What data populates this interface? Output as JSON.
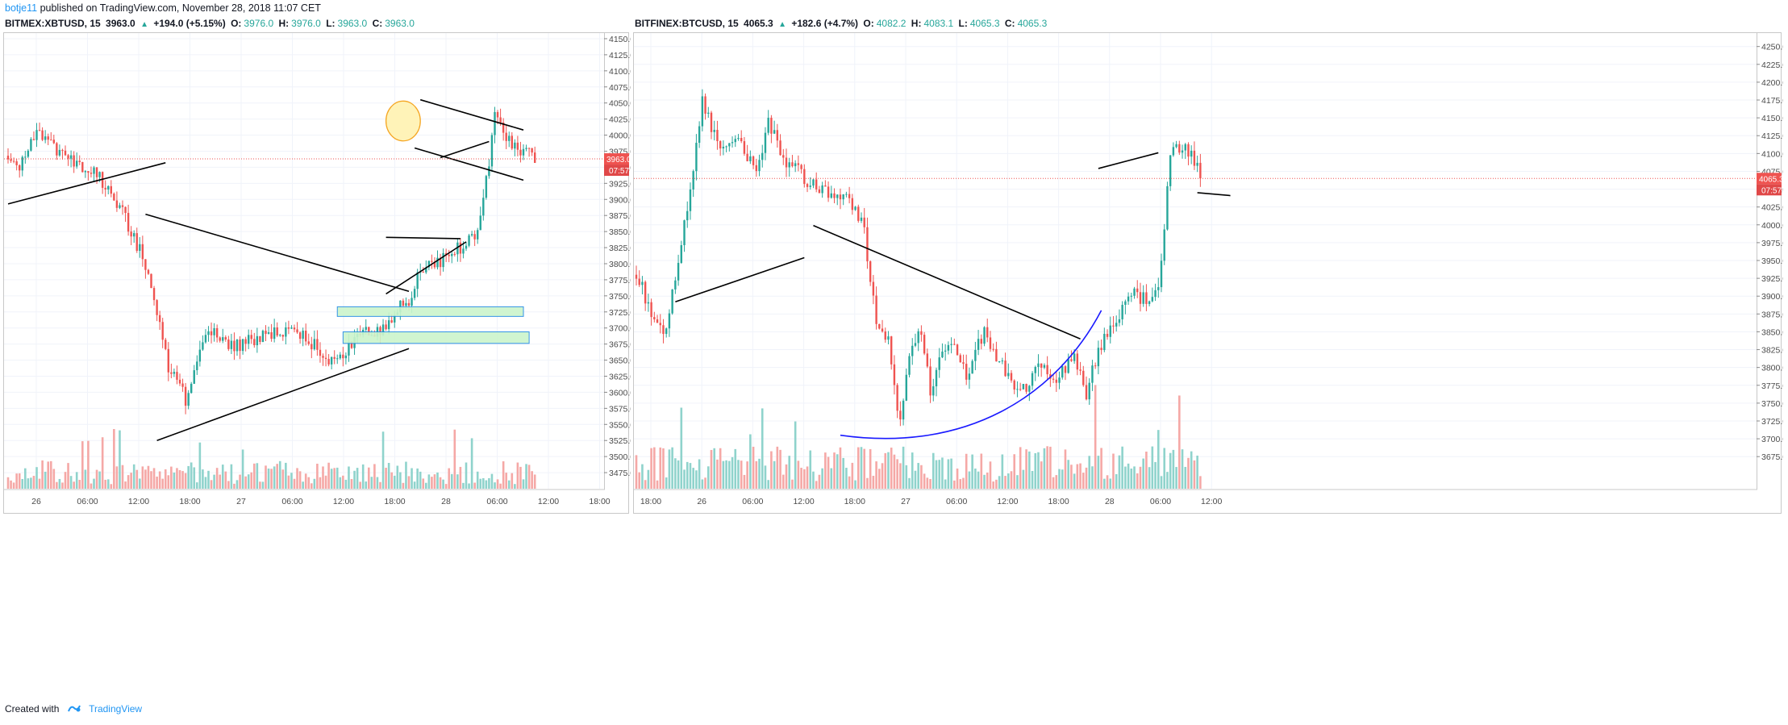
{
  "publication": {
    "author": "botje11",
    "text": "published on TradingView.com, November 28, 2018 11:07 CET"
  },
  "footer": {
    "created_with": "Created with",
    "brand": "TradingView"
  },
  "colors": {
    "up": "#26a69a",
    "down": "#ef5350",
    "up_volume": "#8fd3cc",
    "down_volume": "#f5a8a6",
    "price_line": "#ef5350",
    "zone_fill": "#ccf5cc",
    "zone_border": "#1e88e5",
    "circle_fill": "#fff3b8",
    "circle_border": "#f5a623",
    "curve": "#1a1aff",
    "trendline": "#000000"
  },
  "chart_data": [
    {
      "type": "candlestick",
      "symbol": "BITMEX:XBTUSD, 15",
      "header": {
        "last": "3963.0",
        "change": "+194.0 (+5.15%)",
        "O": "3976.0",
        "H": "3976.0",
        "L": "3963.0",
        "C": "3963.0"
      },
      "ylim": [
        3450,
        4160
      ],
      "y_ticks": [
        3475,
        3500,
        3525,
        3550,
        3575,
        3600,
        3625,
        3650,
        3675,
        3700,
        3725,
        3750,
        3775,
        3800,
        3825,
        3850,
        3875,
        3900,
        3925,
        3950,
        3975,
        4000,
        4025,
        4050,
        4075,
        4100,
        4125,
        4150
      ],
      "y_tick_labels": [
        "3475.0",
        "3500.0",
        "3525.0",
        "3550.0",
        "3575.0",
        "3600.0",
        "3625.0",
        "3650.0",
        "3675.0",
        "3700.0",
        "3725.0",
        "3750.0",
        "3775.0",
        "3800.0",
        "3825.0",
        "3850.0",
        "3875.0",
        "3900.0",
        "3925.0",
        "3950.0",
        "3975.0",
        "4000.0",
        "4025.0",
        "4050.0",
        "4075.0",
        "4100.0",
        "4125.0",
        "4150.0"
      ],
      "x_ticks": [
        "26",
        "06:00",
        "12:00",
        "18:00",
        "27",
        "06:00",
        "12:00",
        "18:00",
        "28",
        "06:00",
        "12:00",
        "18:00"
      ],
      "price_label": "3963.0",
      "countdown": "07:57",
      "last_price": 3963,
      "trend_path": [
        [
          3968,
          0
        ],
        [
          3950,
          4
        ],
        [
          4010,
          10
        ],
        [
          3980,
          16
        ],
        [
          3955,
          24
        ],
        [
          3935,
          32
        ],
        [
          3880,
          40
        ],
        [
          3800,
          48
        ],
        [
          3640,
          56
        ],
        [
          3590,
          62
        ],
        [
          3700,
          70
        ],
        [
          3670,
          78
        ],
        [
          3690,
          90
        ],
        [
          3700,
          100
        ],
        [
          3670,
          108
        ],
        [
          3640,
          112
        ],
        [
          3665,
          118
        ],
        [
          3690,
          124
        ],
        [
          3700,
          132
        ],
        [
          3730,
          136
        ],
        [
          3740,
          140
        ],
        [
          3790,
          144
        ],
        [
          3800,
          150
        ],
        [
          3820,
          156
        ],
        [
          3830,
          160
        ],
        [
          3850,
          164
        ],
        [
          3960,
          168
        ],
        [
          4030,
          170
        ],
        [
          3995,
          174
        ],
        [
          3980,
          178
        ],
        [
          3975,
          182
        ],
        [
          3963,
          185
        ]
      ],
      "n_candles": 185,
      "seed": 17,
      "vol_scale": 0.55,
      "drawings": {
        "lines": [
          [
            0,
            3893,
            55,
            3957
          ],
          [
            48,
            3877,
            140,
            3757
          ],
          [
            52,
            3525,
            140,
            3668
          ],
          [
            132,
            3753,
            160,
            3834
          ],
          [
            132,
            3841,
            158,
            3839
          ],
          [
            144,
            4055,
            180,
            4008
          ],
          [
            142,
            3980,
            180,
            3930
          ],
          [
            151,
            3965,
            168,
            3990
          ]
        ],
        "zones": [
          [
            115,
            3733,
            180,
            3718
          ],
          [
            117,
            3694,
            182,
            3676
          ]
        ],
        "circle": [
          138,
          4022,
          6,
          31
        ]
      }
    },
    {
      "type": "candlestick",
      "symbol": "BITFINEX:BTCUSD, 15",
      "header": {
        "last": "4065.3",
        "change": "+182.6 (+4.7%)",
        "O": "4082.2",
        "H": "4083.1",
        "L": "4065.3",
        "C": "4065.3"
      },
      "ylim": [
        3630,
        4270
      ],
      "y_ticks": [
        3675,
        3700,
        3725,
        3750,
        3775,
        3800,
        3825,
        3850,
        3875,
        3900,
        3925,
        3950,
        3975,
        4000,
        4025,
        4050,
        4075,
        4100,
        4125,
        4150,
        4175,
        4200,
        4225,
        4250
      ],
      "y_tick_labels": [
        "3675.0",
        "3700.0",
        "3725.0",
        "3750.0",
        "3775.0",
        "3800.0",
        "3825.0",
        "3850.0",
        "3875.0",
        "3900.0",
        "3925.0",
        "3950.0",
        "3975.0",
        "4000.0",
        "4025.0",
        "4050.0",
        "4075.0",
        "4100.0",
        "4125.0",
        "4150.0",
        "4175.0",
        "4200.0",
        "4225.0",
        "4250.0"
      ],
      "x_ticks": [
        "18:00",
        "26",
        "06:00",
        "12:00",
        "18:00",
        "27",
        "06:00",
        "12:00",
        "18:00",
        "28",
        "06:00",
        "12:00"
      ],
      "price_label": "4065.3",
      "countdown": "07:57",
      "last_price": 4065,
      "trend_path": [
        [
          3930,
          0
        ],
        [
          3870,
          6
        ],
        [
          3850,
          10
        ],
        [
          3950,
          14
        ],
        [
          4050,
          18
        ],
        [
          4180,
          22
        ],
        [
          4100,
          28
        ],
        [
          4120,
          34
        ],
        [
          4080,
          40
        ],
        [
          4140,
          44
        ],
        [
          4090,
          50
        ],
        [
          4060,
          58
        ],
        [
          4040,
          64
        ],
        [
          4030,
          72
        ],
        [
          3990,
          76
        ],
        [
          3860,
          80
        ],
        [
          3840,
          84
        ],
        [
          3720,
          88
        ],
        [
          3790,
          90
        ],
        [
          3860,
          94
        ],
        [
          3770,
          98
        ],
        [
          3840,
          104
        ],
        [
          3790,
          110
        ],
        [
          3850,
          116
        ],
        [
          3800,
          122
        ],
        [
          3760,
          128
        ],
        [
          3810,
          134
        ],
        [
          3780,
          140
        ],
        [
          3820,
          146
        ],
        [
          3760,
          150
        ],
        [
          3830,
          154
        ],
        [
          3850,
          158
        ],
        [
          3880,
          162
        ],
        [
          3910,
          166
        ],
        [
          3890,
          170
        ],
        [
          3920,
          174
        ],
        [
          4000,
          176
        ],
        [
          4100,
          178
        ],
        [
          4110,
          182
        ],
        [
          4090,
          186
        ],
        [
          4065,
          189
        ]
      ],
      "n_candles": 189,
      "seed": 29,
      "vol_scale": 0.85,
      "drawings": {
        "lines": [
          [
            13,
            3892,
            56,
            3954
          ],
          [
            59,
            3999,
            148,
            3840
          ],
          [
            154,
            4079,
            174,
            4101
          ],
          [
            187,
            4045,
            198,
            4041
          ]
        ],
        "curve": [
          [
            68,
            3705
          ],
          [
            110,
            3680
          ],
          [
            140,
            3760
          ],
          [
            155,
            3880
          ]
        ]
      }
    }
  ]
}
